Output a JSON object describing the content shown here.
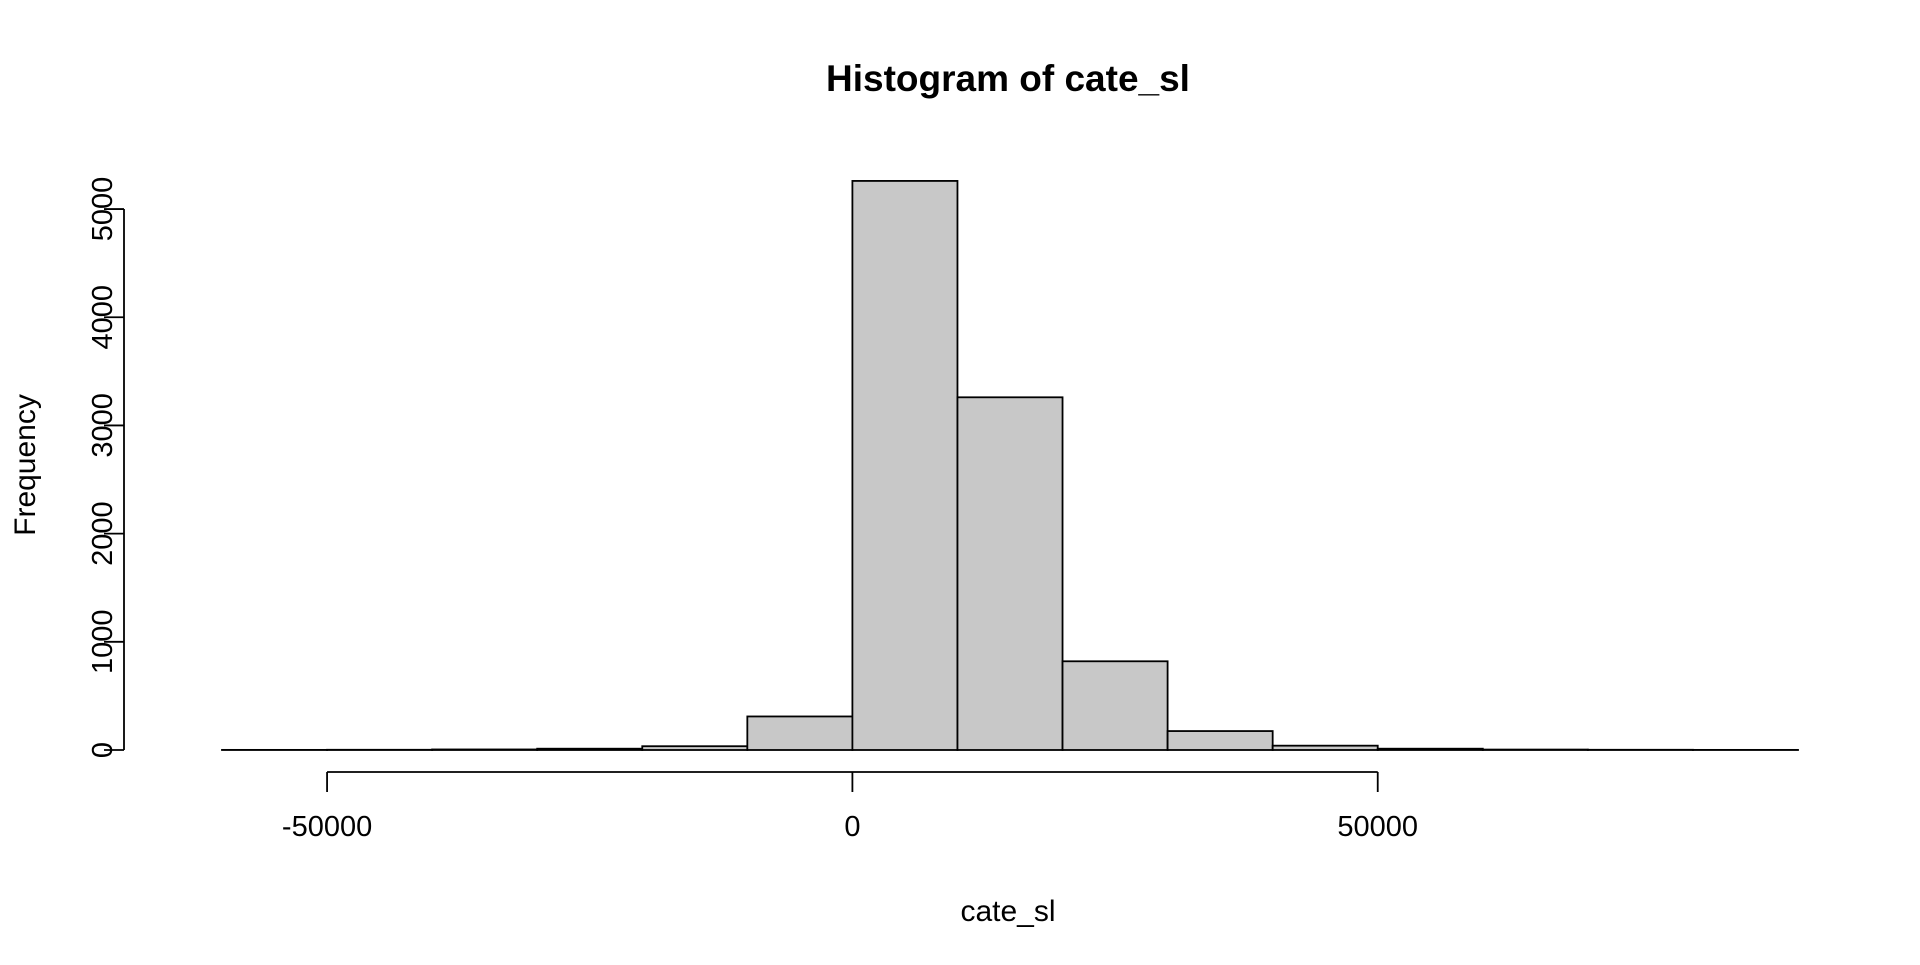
{
  "chart_data": {
    "type": "bar",
    "title": "Histogram of cate_sl",
    "xlabel": "cate_sl",
    "ylabel": "Frequency",
    "bar_color": "#c8c8c8",
    "edge_color": "#000000",
    "xlim": [
      -60000,
      90000
    ],
    "ylim": [
      0,
      5250
    ],
    "x_ticks": [
      {
        "value": -50000,
        "label": "-50000"
      },
      {
        "value": 0,
        "label": "0"
      },
      {
        "value": 50000,
        "label": "50000"
      }
    ],
    "y_ticks": [
      {
        "value": 0,
        "label": "0"
      },
      {
        "value": 1000,
        "label": "1000"
      },
      {
        "value": 2000,
        "label": "2000"
      },
      {
        "value": 3000,
        "label": "3000"
      },
      {
        "value": 4000,
        "label": "4000"
      },
      {
        "value": 5000,
        "label": "5000"
      }
    ],
    "bins": [
      {
        "start": -60000,
        "end": -50000,
        "count": 1
      },
      {
        "start": -50000,
        "end": -40000,
        "count": 2
      },
      {
        "start": -40000,
        "end": -30000,
        "count": 5
      },
      {
        "start": -30000,
        "end": -20000,
        "count": 12
      },
      {
        "start": -20000,
        "end": -10000,
        "count": 35
      },
      {
        "start": -10000,
        "end": 0,
        "count": 310
      },
      {
        "start": 0,
        "end": 10000,
        "count": 5260
      },
      {
        "start": 10000,
        "end": 20000,
        "count": 3260
      },
      {
        "start": 20000,
        "end": 30000,
        "count": 820
      },
      {
        "start": 30000,
        "end": 40000,
        "count": 175
      },
      {
        "start": 40000,
        "end": 50000,
        "count": 40
      },
      {
        "start": 50000,
        "end": 60000,
        "count": 12
      },
      {
        "start": 60000,
        "end": 70000,
        "count": 4
      },
      {
        "start": 70000,
        "end": 80000,
        "count": 2
      },
      {
        "start": 80000,
        "end": 90000,
        "count": 1
      }
    ]
  }
}
